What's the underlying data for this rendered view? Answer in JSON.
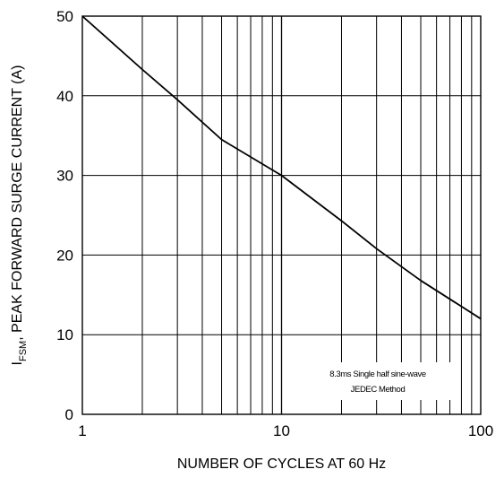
{
  "chart_data": {
    "type": "line",
    "title": "",
    "xlabel": "NUMBER OF CYCLES AT 60 Hz",
    "ylabel": {
      "prefix": "I",
      "subscript": "FSM",
      "suffix": ", PEAK FORWARD SURGE CURRENT (A)"
    },
    "x_scale": "log",
    "xlim": [
      1,
      100
    ],
    "ylim": [
      0,
      50
    ],
    "x_ticks": [
      1,
      10,
      100
    ],
    "x_tick_labels": [
      "1",
      "10",
      "100"
    ],
    "y_ticks": [
      0,
      10,
      20,
      30,
      40,
      50
    ],
    "y_tick_labels": [
      "0",
      "10",
      "20",
      "30",
      "40",
      "50"
    ],
    "grid": true,
    "series": [
      {
        "x": [
          1,
          2,
          3,
          5,
          10,
          20,
          30,
          50,
          100
        ],
        "y": [
          50,
          43.3,
          39.5,
          34.5,
          30,
          24.3,
          20.8,
          16.8,
          12
        ]
      }
    ],
    "annotations": [
      "8.3ms Single half sine-wave",
      "JEDEC Method"
    ],
    "colors": {
      "line": "#000000",
      "grid": "#000000",
      "background": "#ffffff"
    }
  }
}
